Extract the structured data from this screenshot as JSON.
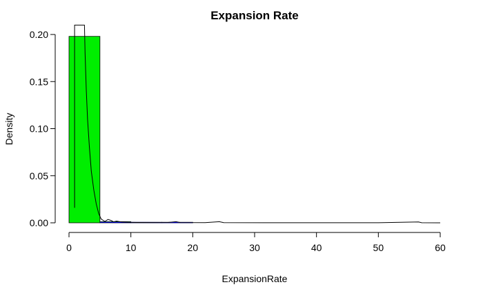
{
  "chart_data": {
    "type": "histogram",
    "title": "Expansion Rate",
    "xlabel": "ExpansionRate",
    "ylabel": "Density",
    "xlim": [
      0,
      60
    ],
    "ylim": [
      0,
      0.2
    ],
    "x_ticks": [
      0,
      10,
      20,
      30,
      40,
      50,
      60
    ],
    "y_ticks": [
      0.0,
      0.05,
      0.1,
      0.15,
      0.2
    ],
    "x_tick_labels": [
      "0",
      "10",
      "20",
      "30",
      "40",
      "50",
      "60"
    ],
    "y_tick_labels": [
      "0.00",
      "0.05",
      "0.10",
      "0.15",
      "0.20"
    ],
    "grid": false,
    "bins": [
      {
        "x0": 0,
        "x1": 5,
        "density": 0.198,
        "color": "#00ee00"
      },
      {
        "x0": 5,
        "x1": 10,
        "density": 0.0012,
        "color": "#00ee00"
      },
      {
        "x0": 10,
        "x1": 15,
        "density": 0.0004,
        "color": "#00ee00"
      },
      {
        "x0": 15,
        "x1": 20,
        "density": 0.0002,
        "color": "#00ee00"
      }
    ],
    "density_curve": {
      "color": "#000000",
      "points": [
        [
          0.9,
          0.016
        ],
        [
          0.9,
          0.21
        ],
        [
          2.5,
          0.21
        ],
        [
          2.6,
          0.18
        ],
        [
          2.8,
          0.14
        ],
        [
          3.0,
          0.11
        ],
        [
          3.3,
          0.08
        ],
        [
          3.6,
          0.055
        ],
        [
          4.0,
          0.035
        ],
        [
          4.4,
          0.02
        ],
        [
          4.8,
          0.01
        ],
        [
          5.2,
          0.004
        ],
        [
          5.8,
          0.0015
        ],
        [
          6.3,
          0.0035
        ],
        [
          6.8,
          0.0025
        ],
        [
          7.2,
          0.001
        ],
        [
          7.7,
          0.0018
        ],
        [
          8.5,
          0.0008
        ],
        [
          9.5,
          0.0005
        ],
        [
          11,
          0.0004
        ],
        [
          14,
          0.0003
        ],
        [
          16,
          0.0004
        ],
        [
          17.3,
          0.0012
        ],
        [
          18,
          0.0003
        ],
        [
          22,
          0.0002
        ],
        [
          24.3,
          0.0012
        ],
        [
          25,
          0.0002
        ],
        [
          35,
          0.0001
        ],
        [
          50,
          0.0001
        ],
        [
          56.5,
          0.0009
        ],
        [
          57,
          0.0001
        ],
        [
          60,
          0.0
        ]
      ]
    },
    "reference_line": {
      "color": "#0000cc",
      "points": [
        [
          5,
          0.0005
        ],
        [
          8,
          0.0004
        ],
        [
          12,
          0.0004
        ],
        [
          16,
          0.0003
        ],
        [
          20,
          0.0003
        ]
      ]
    }
  }
}
